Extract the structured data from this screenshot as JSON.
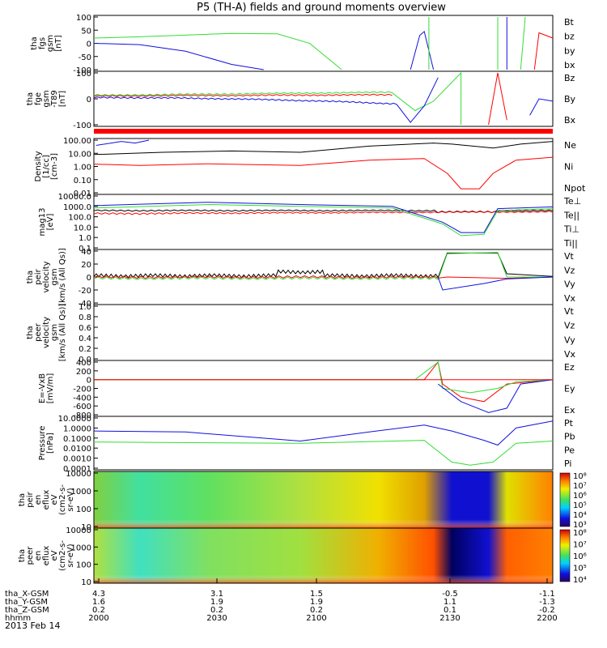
{
  "title": "P5 (TH-A) fields and ground moments overview",
  "colors": {
    "black": "#000000",
    "red": "#ff0000",
    "green": "#33dd33",
    "blue": "#1010e0"
  },
  "panels": [
    {
      "id": "p1",
      "ylabel": [
        "tha",
        "fgs",
        "gsm",
        "[nT]"
      ],
      "ticks": [
        "100",
        "50",
        "0",
        "-50",
        "-100"
      ],
      "legend": [
        {
          "t": "Bt",
          "c": "black"
        },
        {
          "t": "bz",
          "c": "red"
        },
        {
          "t": "by",
          "c": "green"
        },
        {
          "t": "bx",
          "c": "blue"
        }
      ]
    },
    {
      "id": "p2",
      "ylabel": [
        "tha",
        "fge",
        "gsm",
        "-T89",
        "[nT]"
      ],
      "ticks": [
        "100",
        "0",
        "-100"
      ],
      "legend": [
        {
          "t": "Bz",
          "c": "red"
        },
        {
          "t": "By",
          "c": "green"
        },
        {
          "t": "Bx",
          "c": "blue"
        }
      ]
    },
    {
      "id": "p3",
      "ylabel": [
        "Density",
        "[1/cc]",
        "[cm-3]"
      ],
      "ticks": [
        "100.00",
        "10.00",
        "1.00",
        "0.10",
        "0.01"
      ],
      "legend": [
        {
          "t": "Ne",
          "c": "red"
        },
        {
          "t": "Ni",
          "c": "black"
        },
        {
          "t": "Npot",
          "c": "blue"
        }
      ]
    },
    {
      "id": "p4",
      "ylabel": [
        "mag13",
        "[eV]"
      ],
      "ticks": [
        "10000.0",
        "1000.0",
        "100.0",
        "10.0",
        "1.0",
        "0.1"
      ],
      "legend": [
        {
          "t": "Te⊥",
          "c": "red"
        },
        {
          "t": "Te||",
          "c": "black"
        },
        {
          "t": "Ti⊥",
          "c": "blue"
        },
        {
          "t": "Ti||",
          "c": "green"
        }
      ]
    },
    {
      "id": "p5",
      "ylabel": [
        "tha",
        "peir",
        "velocity",
        "gsm",
        "[km/s (All Qs)]"
      ],
      "ticks": [
        "40",
        "20",
        "0",
        "-20",
        "-40"
      ],
      "legend": [
        {
          "t": "Vt",
          "c": "black"
        },
        {
          "t": "Vz",
          "c": "red"
        },
        {
          "t": "Vy",
          "c": "green"
        },
        {
          "t": "Vx",
          "c": "blue"
        }
      ]
    },
    {
      "id": "p6",
      "ylabel": [
        "tha",
        "peer",
        "velocity",
        "gsm",
        "[km/s (All Qs)]"
      ],
      "ticks": [
        "1.0",
        "0.8",
        "0.6",
        "0.4",
        "0.2",
        "0.0"
      ],
      "legend": [
        {
          "t": "Vt",
          "c": "black"
        },
        {
          "t": "Vz",
          "c": "red"
        },
        {
          "t": "Vy",
          "c": "green"
        },
        {
          "t": "Vx",
          "c": "blue"
        }
      ]
    },
    {
      "id": "p7",
      "ylabel": [
        "E=-VxB",
        "[mV/m]"
      ],
      "ticks": [
        "400",
        "200",
        "0",
        "-200",
        "-400",
        "-600",
        "-800"
      ],
      "legend": [
        {
          "t": "Ez",
          "c": "red"
        },
        {
          "t": "Ey",
          "c": "green"
        },
        {
          "t": "Ex",
          "c": "blue"
        }
      ]
    },
    {
      "id": "p8",
      "ylabel": [
        "Pressure",
        "[nPa]"
      ],
      "ticks": [
        "10.0000",
        "1.0000",
        "0.1000",
        "0.0100",
        "0.0010",
        "0.0001"
      ],
      "legend": [
        {
          "t": "Pt",
          "c": "black"
        },
        {
          "t": "Pb",
          "c": "red"
        },
        {
          "t": "Pe",
          "c": "green"
        },
        {
          "t": "Pi",
          "c": "blue"
        }
      ]
    },
    {
      "id": "p9",
      "ylabel": [
        "tha",
        "peir",
        "en",
        "eflux",
        "eV",
        "(cm2-s-",
        "sr-eV)"
      ],
      "ticks": [
        "10000",
        "1000",
        "100",
        "10"
      ],
      "cbar": [
        "10⁸",
        "10⁷",
        "10⁶",
        "10⁵",
        "10⁴",
        "10³"
      ]
    },
    {
      "id": "p10",
      "ylabel": [
        "tha",
        "peer",
        "en",
        "eflux",
        "eV",
        "(cm2-s-",
        "sr-eV)"
      ],
      "ticks": [
        "10000",
        "1000",
        "100",
        "10"
      ],
      "cbar": [
        "10⁸",
        "10⁷",
        "10⁶",
        "10⁵",
        "10⁴"
      ]
    }
  ],
  "footer": {
    "rows": [
      {
        "label": "tha_X-GSM",
        "vals": [
          "4.3",
          "3.1",
          "1.5",
          "-0.5",
          "-1.1"
        ]
      },
      {
        "label": "tha_Y-GSM",
        "vals": [
          "1.6",
          "1.9",
          "1.9",
          "1.1",
          "-1.3"
        ]
      },
      {
        "label": "tha_Z-GSM",
        "vals": [
          "0.2",
          "0.2",
          "0.2",
          "0.1",
          "-0.2"
        ]
      },
      {
        "label": "hhmm",
        "vals": [
          "2000",
          "2030",
          "2100",
          "2130",
          "2200"
        ]
      }
    ],
    "date": "2013 Feb 14"
  },
  "chart_data": {
    "type": "line",
    "title": "P5 (TH-A) fields and ground moments overview",
    "x": [
      "2000",
      "2030",
      "2100",
      "2130",
      "2200"
    ],
    "xlabel": "hhmm",
    "date": "2013 Feb 14",
    "panels": [
      {
        "ylabel": "tha fgs gsm [nT]",
        "ylim": [
          -100,
          100
        ],
        "series": [
          {
            "name": "by",
            "values": [
              20,
              40,
              35,
              -100,
              null
            ]
          },
          {
            "name": "bx",
            "values": [
              0,
              -30,
              -100,
              null,
              null
            ]
          }
        ]
      },
      {
        "ylabel": "tha fge gsm -T89 [nT]",
        "ylim": [
          -120,
          100
        ],
        "series": [
          {
            "name": "Bz",
            "values": [
              0,
              0,
              5,
              -20,
              -40
            ]
          },
          {
            "name": "By",
            "values": [
              0,
              0,
              10,
              0,
              -20
            ]
          },
          {
            "name": "Bx",
            "values": [
              0,
              -20,
              -40,
              -100,
              -60
            ]
          }
        ]
      },
      {
        "ylabel": "Density [1/cc]",
        "scale": "log",
        "ylim": [
          0.01,
          100
        ],
        "series": [
          {
            "name": "Ne",
            "values": [
              2,
              1.5,
              3,
              0.02,
              3
            ]
          },
          {
            "name": "Ni",
            "values": [
              10,
              8,
              20,
              40,
              30
            ]
          }
        ]
      },
      {
        "ylabel": "mag13 [eV]",
        "scale": "log",
        "ylim": [
          0.1,
          10000
        ],
        "series": [
          {
            "name": "Te⊥",
            "values": [
              200,
              150,
              200,
              300,
              400
            ]
          },
          {
            "name": "Ti⊥",
            "values": [
              1000,
              1500,
              1000,
              2,
              900
            ]
          },
          {
            "name": "Ti||",
            "values": [
              800,
              1000,
              800,
              1,
              700
            ]
          }
        ]
      },
      {
        "ylabel": "tha peir velocity gsm [km/s (All Qs)]",
        "ylim": [
          -40,
          40
        ],
        "series": [
          {
            "name": "Vt",
            "values": [
              3,
              8,
              5,
              35,
              2
            ]
          },
          {
            "name": "Vy",
            "values": [
              0,
              -2,
              0,
              38,
              0
            ]
          },
          {
            "name": "Vx",
            "values": [
              0,
              0,
              0,
              -20,
              0
            ]
          }
        ]
      },
      {
        "ylabel": "E=-VxB [mV/m]",
        "ylim": [
          -800,
          400
        ],
        "series": [
          {
            "name": "Ez",
            "values": [
              0,
              0,
              0,
              -400,
              0
            ]
          },
          {
            "name": "Ey",
            "values": [
              0,
              0,
              0,
              -300,
              0
            ]
          },
          {
            "name": "Ex",
            "values": [
              0,
              0,
              0,
              -700,
              0
            ]
          }
        ]
      },
      {
        "ylabel": "Pressure [nPa]",
        "scale": "log",
        "ylim": [
          0.0001,
          10
        ],
        "series": [
          {
            "name": "Pi",
            "values": [
              0.5,
              0.4,
              0.05,
              0.05,
              5
            ]
          },
          {
            "name": "Pe",
            "values": [
              0.04,
              0.04,
              0.03,
              0.0002,
              0.05
            ]
          }
        ]
      }
    ]
  }
}
